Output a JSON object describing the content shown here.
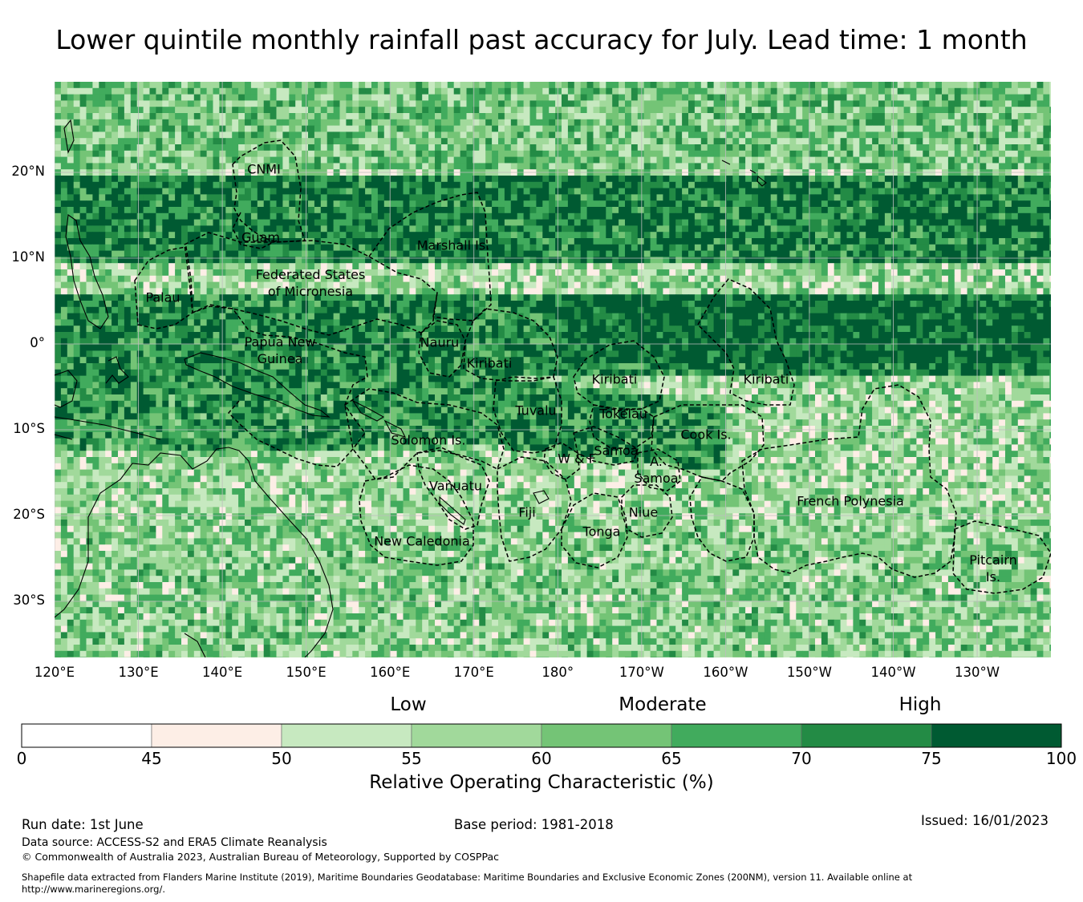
{
  "title": "Lower quintile monthly rainfall past accuracy for July. Lead time: 1 month",
  "map": {
    "lat_ticks": [
      "20°N",
      "10°N",
      "0°",
      "10°S",
      "20°S",
      "30°S"
    ],
    "lon_ticks": [
      "120°E",
      "130°E",
      "140°E",
      "150°E",
      "160°E",
      "170°E",
      "180°",
      "170°W",
      "160°W",
      "150°W",
      "140°W",
      "130°W"
    ],
    "regions": [
      {
        "name": "CNMI"
      },
      {
        "name": "Guam"
      },
      {
        "name": "Marshall Is."
      },
      {
        "name": "Federated States of Micronesia"
      },
      {
        "name": "Palau"
      },
      {
        "name": "Papua New Guinea"
      },
      {
        "name": "Nauru"
      },
      {
        "name": "Kiribati"
      },
      {
        "name": "Kiribati"
      },
      {
        "name": "Kiribati"
      },
      {
        "name": "Tuvalu"
      },
      {
        "name": "Tokelau"
      },
      {
        "name": "Cook Is."
      },
      {
        "name": "Solomon Is."
      },
      {
        "name": "Samoa"
      },
      {
        "name": "W & F"
      },
      {
        "name": "A. Samoa"
      },
      {
        "name": "Vanuatu"
      },
      {
        "name": "Fiji"
      },
      {
        "name": "Niue"
      },
      {
        "name": "Tonga"
      },
      {
        "name": "French Polynesia"
      },
      {
        "name": "New Caledonia"
      },
      {
        "name": "Pitcairn Is."
      }
    ]
  },
  "colorbar": {
    "categories": [
      "Low",
      "Moderate",
      "High"
    ],
    "ticks": [
      "0",
      "45",
      "50",
      "55",
      "60",
      "65",
      "70",
      "75",
      "100"
    ],
    "colors": [
      "#ffffff",
      "#fdeee6",
      "#c7e9c0",
      "#a1d99b",
      "#74c476",
      "#41ab5d",
      "#238b45",
      "#005a32"
    ],
    "title": "Relative Operating Characteristic (%)"
  },
  "footer": {
    "run_date": "Run date: 1st June",
    "base_period": "Base period: 1981-2018",
    "issued": "Issued: 16/01/2023",
    "data_source": "Data source: ACCESS-S2 and ERA5 Climate Reanalysis",
    "copyright": "© Commonwealth of Australia 2023, Australian Bureau of Meteorology, Supported by COSPPac",
    "shapefile_line1": "Shapefile data extracted from Flanders Marine Institute (2019), Maritime Boundaries Geodatabase: Maritime Boundaries and Exclusive Economic Zones (200NM), version 11. Available online at",
    "shapefile_line2": "http://www.marineregions.org/."
  }
}
